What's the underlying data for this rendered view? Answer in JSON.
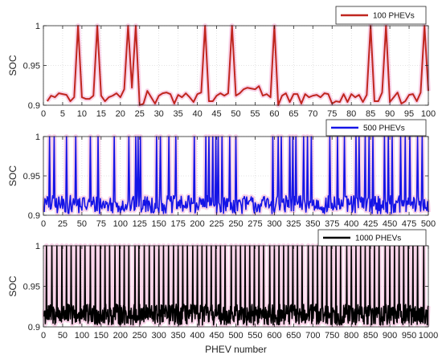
{
  "chart_data": [
    {
      "type": "line",
      "legend": "100 PHEVs",
      "legend_placement": "top-right",
      "color": "#c0261f",
      "band_color": "#f2a0cf",
      "ylabel": "SOC",
      "xlabel": "",
      "xlim": [
        0,
        100
      ],
      "ylim": [
        0.9,
        1.0
      ],
      "xticks": [
        0,
        5,
        10,
        15,
        20,
        25,
        30,
        35,
        40,
        45,
        50,
        55,
        60,
        65,
        70,
        75,
        80,
        85,
        90,
        95,
        100
      ],
      "yticks": [
        0.9,
        0.95,
        1
      ],
      "ytick_labels": [
        "0.9",
        "0.95",
        "1"
      ],
      "grid": true,
      "x": [
        1,
        2,
        3,
        4,
        5,
        6,
        7,
        8,
        9,
        10,
        11,
        12,
        13,
        14,
        15,
        16,
        17,
        18,
        19,
        20,
        21,
        22,
        23,
        24,
        25,
        26,
        27,
        28,
        29,
        30,
        31,
        32,
        33,
        34,
        35,
        36,
        37,
        38,
        39,
        40,
        41,
        42,
        43,
        44,
        45,
        46,
        47,
        48,
        49,
        50,
        51,
        52,
        53,
        54,
        55,
        56,
        57,
        58,
        59,
        60,
        61,
        62,
        63,
        64,
        65,
        66,
        67,
        68,
        69,
        70,
        71,
        72,
        73,
        74,
        75,
        76,
        77,
        78,
        79,
        80,
        81,
        82,
        83,
        84,
        85,
        86,
        87,
        88,
        89,
        90,
        91,
        92,
        93,
        94,
        95,
        96,
        97,
        98,
        99,
        100
      ],
      "y": [
        0.905,
        0.912,
        0.91,
        0.915,
        0.914,
        0.913,
        0.905,
        0.91,
        1.0,
        0.91,
        0.908,
        0.908,
        0.912,
        1.0,
        0.912,
        0.905,
        0.91,
        0.912,
        0.915,
        0.91,
        0.92,
        1.0,
        0.922,
        1.0,
        0.9,
        0.902,
        0.918,
        0.91,
        0.902,
        0.912,
        0.915,
        0.916,
        0.914,
        0.902,
        0.913,
        0.91,
        0.915,
        0.91,
        0.904,
        0.914,
        0.916,
        1.0,
        0.905,
        0.905,
        0.912,
        0.915,
        0.912,
        0.915,
        1.0,
        0.912,
        0.915,
        0.92,
        0.922,
        0.921,
        0.92,
        0.924,
        0.912,
        0.914,
        0.91,
        1.0,
        0.9,
        0.912,
        0.915,
        0.904,
        0.914,
        0.914,
        0.902,
        0.914,
        0.91,
        0.912,
        0.913,
        0.91,
        0.915,
        0.914,
        0.902,
        0.905,
        0.904,
        0.914,
        0.904,
        0.914,
        0.91,
        0.913,
        0.904,
        0.913,
        1.0,
        0.905,
        0.905,
        0.916,
        1.0,
        0.904,
        0.91,
        0.916,
        0.902,
        0.905,
        0.913,
        0.914,
        0.905,
        0.916,
        1.0,
        0.918
      ]
    },
    {
      "type": "line",
      "legend": "500 PHEVs",
      "legend_placement": "top-right",
      "color": "#1414e6",
      "band_color": "#f2a0cf",
      "ylabel": "SOC",
      "xlabel": "",
      "xlim": [
        0,
        500
      ],
      "ylim": [
        0.9,
        1.0
      ],
      "xticks": [
        0,
        25,
        50,
        75,
        100,
        125,
        150,
        175,
        200,
        225,
        250,
        275,
        300,
        325,
        350,
        375,
        400,
        425,
        450,
        475,
        500
      ],
      "yticks": [
        0.9,
        0.95,
        1
      ],
      "ytick_labels": [
        "0.9",
        "0.95",
        "1"
      ],
      "grid": true,
      "n_points": 500,
      "baseline_range": [
        0.902,
        0.925
      ],
      "peak_value": 1.0,
      "peak_positions": [
        8,
        14,
        30,
        42,
        61,
        71,
        92,
        111,
        120,
        123,
        126,
        147,
        152,
        163,
        172,
        196,
        211,
        215,
        220,
        224,
        227,
        232,
        242,
        250,
        298,
        305,
        309,
        320,
        324,
        328,
        338,
        343,
        348,
        372,
        382,
        391,
        406,
        410,
        418,
        423,
        428,
        443,
        448,
        453,
        464,
        470,
        476,
        486,
        492
      ]
    },
    {
      "type": "line",
      "legend": "1000 PHEVs",
      "legend_placement": "top-right",
      "color": "#000000",
      "band_color": "#f2a0cf",
      "ylabel": "SOC",
      "xlabel": "PHEV number",
      "xlim": [
        0,
        1000
      ],
      "ylim": [
        0.9,
        1.0
      ],
      "xticks": [
        0,
        50,
        100,
        150,
        200,
        250,
        300,
        350,
        400,
        450,
        500,
        550,
        600,
        650,
        700,
        750,
        800,
        850,
        900,
        950,
        1000
      ],
      "xtick_labels": [
        "0",
        "50",
        "100",
        "150",
        "200",
        "250",
        "300",
        "350",
        "400",
        "450",
        "500",
        "550",
        "600",
        "650",
        "700",
        "750",
        "800",
        "850",
        "900",
        "950",
        "1000"
      ],
      "yticks": [
        0.9,
        0.95,
        1
      ],
      "ytick_labels": [
        "0.9",
        "0.95",
        "1"
      ],
      "grid": true,
      "n_points": 1000,
      "baseline_range": [
        0.902,
        0.928
      ],
      "peak_value": 1.0,
      "peak_positions": [
        8,
        22,
        35,
        48,
        60,
        72,
        85,
        96,
        108,
        122,
        135,
        148,
        160,
        172,
        186,
        198,
        210,
        222,
        238,
        248,
        262,
        275,
        288,
        300,
        312,
        325,
        338,
        350,
        362,
        374,
        388,
        400,
        412,
        424,
        436,
        448,
        460,
        472,
        488,
        500,
        512,
        524,
        536,
        548,
        560,
        572,
        588,
        600,
        612,
        624,
        636,
        648,
        660,
        672,
        688,
        700,
        712,
        724,
        736,
        748,
        760,
        772,
        788,
        800,
        812,
        824,
        836,
        848,
        860,
        872,
        888,
        900,
        912,
        924,
        936,
        948,
        960,
        972,
        988
      ]
    }
  ]
}
